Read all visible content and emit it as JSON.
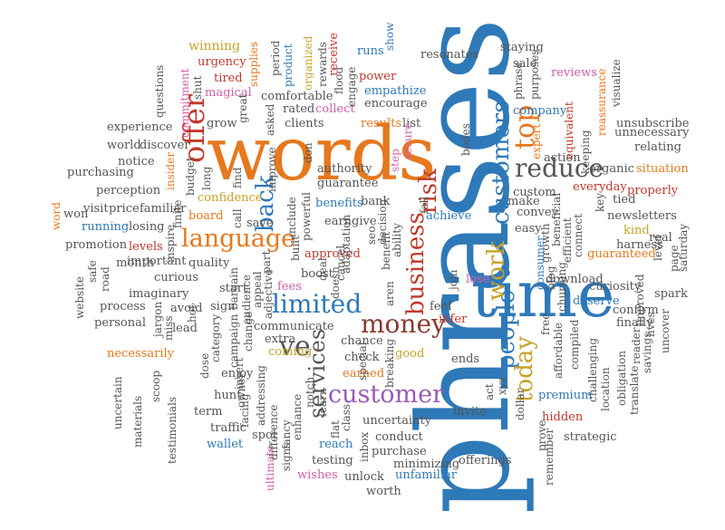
{
  "words": [
    {
      "text": "phrases",
      "color": "#2e79b8"
    },
    {
      "text": "words",
      "color": "#e6781e"
    },
    {
      "text": "time",
      "color": "#2e79b8"
    },
    {
      "text": "customer",
      "color": "#9b59b6"
    },
    {
      "text": "language",
      "color": "#e6781e"
    },
    {
      "text": "limited",
      "color": "#2e79b8"
    },
    {
      "text": "reduce",
      "color": "#555555"
    },
    {
      "text": "money",
      "color": "#8b3a2f"
    },
    {
      "text": "offer",
      "color": "#c0392b"
    },
    {
      "text": "customers",
      "color": "#2e79b8"
    },
    {
      "text": "top",
      "color": "#e6781e"
    },
    {
      "text": "people",
      "color": "#2e79b8"
    },
    {
      "text": "work",
      "color": "#c9a227"
    },
    {
      "text": "today",
      "color": "#c9a227"
    },
    {
      "text": "risk",
      "color": "#c0392b"
    },
    {
      "text": "business",
      "color": "#c0392b"
    },
    {
      "text": "back",
      "color": "#2e79b8"
    },
    {
      "text": "ve",
      "color": "#555555"
    },
    {
      "text": "services",
      "color": "#555555"
    },
    {
      "text": "winning",
      "color": "#c9a227"
    },
    {
      "text": "urgency",
      "color": "#c0392b"
    },
    {
      "text": "tired",
      "color": "#c0392b"
    },
    {
      "text": "magical",
      "color": "#d35fa8"
    },
    {
      "text": "period",
      "color": "#555555"
    },
    {
      "text": "organized",
      "color": "#c9a227"
    },
    {
      "text": "supplies",
      "color": "#e6781e"
    },
    {
      "text": "product",
      "color": "#2e79b8"
    },
    {
      "text": "receive",
      "color": "#c0392b"
    },
    {
      "text": "rewards",
      "color": "#555555"
    },
    {
      "text": "flood",
      "color": "#555555"
    },
    {
      "text": "runs",
      "color": "#2e79b8"
    },
    {
      "text": "show",
      "color": "#2e79b8"
    },
    {
      "text": "resonates",
      "color": "#555555"
    },
    {
      "text": "staying",
      "color": "#555555"
    },
    {
      "text": "sale",
      "color": "#555555"
    },
    {
      "text": "reviews",
      "color": "#d35fa8"
    },
    {
      "text": "visualize",
      "color": "#555555"
    },
    {
      "text": "power",
      "color": "#c0392b"
    },
    {
      "text": "empathize",
      "color": "#2e79b8"
    },
    {
      "text": "encourage",
      "color": "#555555"
    },
    {
      "text": "comfortable",
      "color": "#555555"
    },
    {
      "text": "rated",
      "color": "#555555"
    },
    {
      "text": "collect",
      "color": "#d35fa8"
    },
    {
      "text": "results",
      "color": "#e6781e"
    },
    {
      "text": "list",
      "color": "#555555"
    },
    {
      "text": "company",
      "color": "#2e79b8"
    },
    {
      "text": "phrase",
      "color": "#555555"
    },
    {
      "text": "purposes",
      "color": "#555555"
    },
    {
      "text": "reassurance",
      "color": "#e6781e"
    },
    {
      "text": "unsubscribe",
      "color": "#555555"
    },
    {
      "text": "unnecessary",
      "color": "#555555"
    },
    {
      "text": "experience",
      "color": "#555555"
    },
    {
      "text": "commitment",
      "color": "#d35fa8"
    },
    {
      "text": "grow",
      "color": "#555555"
    },
    {
      "text": "clients",
      "color": "#555555"
    },
    {
      "text": "world",
      "color": "#555555"
    },
    {
      "text": "discover",
      "color": "#555555"
    },
    {
      "text": "notice",
      "color": "#555555"
    },
    {
      "text": "purchasing",
      "color": "#555555"
    },
    {
      "text": "insider",
      "color": "#e6781e"
    },
    {
      "text": "perception",
      "color": "#555555"
    },
    {
      "text": "confidence",
      "color": "#c9a227"
    },
    {
      "text": "guarantee",
      "color": "#555555"
    },
    {
      "text": "authority",
      "color": "#555555"
    },
    {
      "text": "bodes",
      "color": "#555555"
    },
    {
      "text": "custom",
      "color": "#555555"
    },
    {
      "text": "action",
      "color": "#555555"
    },
    {
      "text": "organic",
      "color": "#555555"
    },
    {
      "text": "situation",
      "color": "#e6781e"
    },
    {
      "text": "everyday",
      "color": "#c0392b"
    },
    {
      "text": "properly",
      "color": "#c0392b"
    },
    {
      "text": "relating",
      "color": "#555555"
    },
    {
      "text": "equivalent",
      "color": "#c0392b"
    },
    {
      "text": "expert",
      "color": "#e6781e"
    },
    {
      "text": "secure",
      "color": "#d35fa8"
    },
    {
      "text": "step",
      "color": "#d35fa8"
    },
    {
      "text": "don",
      "color": "#555555"
    },
    {
      "text": "word",
      "color": "#e6781e"
    },
    {
      "text": "won",
      "color": "#555555"
    },
    {
      "text": "visit",
      "color": "#555555"
    },
    {
      "text": "price",
      "color": "#555555"
    },
    {
      "text": "familiar",
      "color": "#555555"
    },
    {
      "text": "running",
      "color": "#2e79b8"
    },
    {
      "text": "losing",
      "color": "#555555"
    },
    {
      "text": "board",
      "color": "#e6781e"
    },
    {
      "text": "save",
      "color": "#555555"
    },
    {
      "text": "earn",
      "color": "#555555"
    },
    {
      "text": "give",
      "color": "#555555"
    },
    {
      "text": "bank",
      "color": "#555555"
    },
    {
      "text": "convey",
      "color": "#555555"
    },
    {
      "text": "make",
      "color": "#555555"
    },
    {
      "text": "easy",
      "color": "#555555"
    },
    {
      "text": "achieve",
      "color": "#2e79b8"
    },
    {
      "text": "benefits",
      "color": "#2e79b8"
    },
    {
      "text": "powerful",
      "color": "#555555"
    },
    {
      "text": "include",
      "color": "#555555"
    },
    {
      "text": "newsletters",
      "color": "#555555"
    },
    {
      "text": "tied",
      "color": "#555555"
    },
    {
      "text": "harness",
      "color": "#555555"
    },
    {
      "text": "kind",
      "color": "#c9a227"
    },
    {
      "text": "guaranteed",
      "color": "#e6781e"
    },
    {
      "text": "real",
      "color": "#555555"
    },
    {
      "text": "promotion",
      "color": "#555555"
    },
    {
      "text": "levels",
      "color": "#c0392b"
    },
    {
      "text": "approved",
      "color": "#c0392b"
    },
    {
      "text": "adaptation",
      "color": "#555555"
    },
    {
      "text": "decision",
      "color": "#555555"
    },
    {
      "text": "seo",
      "color": "#555555"
    },
    {
      "text": "ability",
      "color": "#555555"
    },
    {
      "text": "month",
      "color": "#555555"
    },
    {
      "text": "important",
      "color": "#555555"
    },
    {
      "text": "quality",
      "color": "#555555"
    },
    {
      "text": "curious",
      "color": "#555555"
    },
    {
      "text": "imaginary",
      "color": "#555555"
    },
    {
      "text": "boost",
      "color": "#555555"
    },
    {
      "text": "cancel",
      "color": "#555555"
    },
    {
      "text": "deal",
      "color": "#555555"
    },
    {
      "text": "fees",
      "color": "#d35fa8"
    },
    {
      "text": "lose",
      "color": "#d35fa8"
    },
    {
      "text": "join",
      "color": "#555555"
    },
    {
      "text": "consumer",
      "color": "#2e79b8"
    },
    {
      "text": "blog",
      "color": "#555555"
    },
    {
      "text": "download",
      "color": "#555555"
    },
    {
      "text": "deserve",
      "color": "#2e79b8"
    },
    {
      "text": "curiosity",
      "color": "#555555"
    },
    {
      "text": "spark",
      "color": "#555555"
    },
    {
      "text": "feel",
      "color": "#555555"
    },
    {
      "text": "process",
      "color": "#555555"
    },
    {
      "text": "personal",
      "color": "#555555"
    },
    {
      "text": "avoid",
      "color": "#555555"
    },
    {
      "text": "jargon",
      "color": "#555555"
    },
    {
      "text": "lead",
      "color": "#555555"
    },
    {
      "text": "communicate",
      "color": "#555555"
    },
    {
      "text": "extra",
      "color": "#555555"
    },
    {
      "text": "coming",
      "color": "#c9a227"
    },
    {
      "text": "infer",
      "color": "#c0392b"
    },
    {
      "text": "chance",
      "color": "#555555"
    },
    {
      "text": "confirm",
      "color": "#555555"
    },
    {
      "text": "finally",
      "color": "#555555"
    },
    {
      "text": "necessarily",
      "color": "#e6781e"
    },
    {
      "text": "enjoy",
      "color": "#555555"
    },
    {
      "text": "check",
      "color": "#555555"
    },
    {
      "text": "good",
      "color": "#c9a227"
    },
    {
      "text": "ends",
      "color": "#555555"
    },
    {
      "text": "earned",
      "color": "#e6781e"
    },
    {
      "text": "premium",
      "color": "#2e79b8"
    },
    {
      "text": "uncertain",
      "color": "#555555"
    },
    {
      "text": "testimonials",
      "color": "#555555"
    },
    {
      "text": "hunt",
      "color": "#555555"
    },
    {
      "text": "term",
      "color": "#555555"
    },
    {
      "text": "traffic",
      "color": "#555555"
    },
    {
      "text": "wallet",
      "color": "#2e79b8"
    },
    {
      "text": "spot",
      "color": "#555555"
    },
    {
      "text": "uncertainty",
      "color": "#555555"
    },
    {
      "text": "invite",
      "color": "#555555"
    },
    {
      "text": "hidden",
      "color": "#c0392b"
    },
    {
      "text": "conduct",
      "color": "#555555"
    },
    {
      "text": "reach",
      "color": "#2e79b8"
    },
    {
      "text": "purchase",
      "color": "#555555"
    },
    {
      "text": "minimizing",
      "color": "#555555"
    },
    {
      "text": "strategic",
      "color": "#555555"
    },
    {
      "text": "testing",
      "color": "#555555"
    },
    {
      "text": "offerings",
      "color": "#555555"
    },
    {
      "text": "wishes",
      "color": "#d35fa8"
    },
    {
      "text": "unlock",
      "color": "#555555"
    },
    {
      "text": "unfamiliar",
      "color": "#2e79b8"
    },
    {
      "text": "worth",
      "color": "#555555"
    },
    {
      "text": "ultimate",
      "color": "#d35fa8"
    },
    {
      "text": "signs",
      "color": "#555555"
    },
    {
      "text": "remember",
      "color": "#555555"
    },
    {
      "text": "prove",
      "color": "#555555"
    },
    {
      "text": "dollar",
      "color": "#555555"
    },
    {
      "text": "xyz",
      "color": "#555555"
    },
    {
      "text": "inbox",
      "color": "#555555"
    },
    {
      "text": "notch",
      "color": "#555555"
    },
    {
      "text": "fancy",
      "color": "#555555"
    },
    {
      "text": "class",
      "color": "#555555"
    },
    {
      "text": "materials",
      "color": "#555555"
    },
    {
      "text": "scoop",
      "color": "#555555"
    },
    {
      "text": "website",
      "color": "#555555"
    },
    {
      "text": "safe",
      "color": "#555555"
    },
    {
      "text": "road",
      "color": "#555555"
    },
    {
      "text": "challenging",
      "color": "#555555"
    },
    {
      "text": "translate",
      "color": "#555555"
    },
    {
      "text": "lives",
      "color": "#555555"
    },
    {
      "text": "savings",
      "color": "#555555"
    },
    {
      "text": "uncover",
      "color": "#555555"
    },
    {
      "text": "obligation",
      "color": "#555555"
    },
    {
      "text": "location",
      "color": "#555555"
    },
    {
      "text": "reader",
      "color": "#555555"
    },
    {
      "text": "improved",
      "color": "#555555"
    },
    {
      "text": "saturday",
      "color": "#555555"
    },
    {
      "text": "level",
      "color": "#555555"
    },
    {
      "text": "page",
      "color": "#555555"
    },
    {
      "text": "connect",
      "color": "#555555"
    },
    {
      "text": "efficient",
      "color": "#555555"
    },
    {
      "text": "beneficial",
      "color": "#555555"
    },
    {
      "text": "growth",
      "color": "#555555"
    },
    {
      "text": "churning",
      "color": "#555555"
    },
    {
      "text": "compiled",
      "color": "#555555"
    },
    {
      "text": "affordable",
      "color": "#555555"
    },
    {
      "text": "free",
      "color": "#555555"
    },
    {
      "text": "act",
      "color": "#555555"
    },
    {
      "text": "keeping",
      "color": "#555555"
    },
    {
      "text": "key",
      "color": "#555555"
    },
    {
      "text": "aren",
      "color": "#555555"
    },
    {
      "text": "benefit",
      "color": "#555555"
    },
    {
      "text": "special",
      "color": "#555555"
    },
    {
      "text": "learn",
      "color": "#555555"
    },
    {
      "text": "flat",
      "color": "#555555"
    },
    {
      "text": "enhance",
      "color": "#555555"
    },
    {
      "text": "breaking",
      "color": "#555555"
    },
    {
      "text": "difference",
      "color": "#555555"
    },
    {
      "text": "addressing",
      "color": "#555555"
    },
    {
      "text": "facing",
      "color": "#555555"
    },
    {
      "text": "owner",
      "color": "#555555"
    },
    {
      "text": "insert",
      "color": "#555555"
    },
    {
      "text": "dose",
      "color": "#555555"
    },
    {
      "text": "hot",
      "color": "#555555"
    },
    {
      "text": "miss",
      "color": "#555555"
    },
    {
      "text": "category",
      "color": "#555555"
    },
    {
      "text": "campaign",
      "color": "#555555"
    },
    {
      "text": "change",
      "color": "#555555"
    },
    {
      "text": "audience",
      "color": "#555555"
    },
    {
      "text": "appeal",
      "color": "#555555"
    },
    {
      "text": "part",
      "color": "#555555"
    },
    {
      "text": "adjective",
      "color": "#555555"
    },
    {
      "text": "built",
      "color": "#555555"
    },
    {
      "text": "doesn",
      "color": "#555555"
    },
    {
      "text": "start",
      "color": "#555555"
    },
    {
      "text": "sign",
      "color": "#555555"
    },
    {
      "text": "bargain",
      "color": "#555555"
    },
    {
      "text": "inspire",
      "color": "#555555"
    },
    {
      "text": "call",
      "color": "#555555"
    },
    {
      "text": "find",
      "color": "#555555"
    },
    {
      "text": "long",
      "color": "#555555"
    },
    {
      "text": "budget",
      "color": "#555555"
    },
    {
      "text": "finite",
      "color": "#555555"
    },
    {
      "text": "shut",
      "color": "#555555"
    },
    {
      "text": "questions",
      "color": "#555555"
    },
    {
      "text": "great",
      "color": "#555555"
    },
    {
      "text": "asked",
      "color": "#555555"
    },
    {
      "text": "improve",
      "color": "#555555"
    },
    {
      "text": "engage",
      "color": "#555555"
    },
    {
      "text": "fall",
      "color": "#555555"
    }
  ]
}
